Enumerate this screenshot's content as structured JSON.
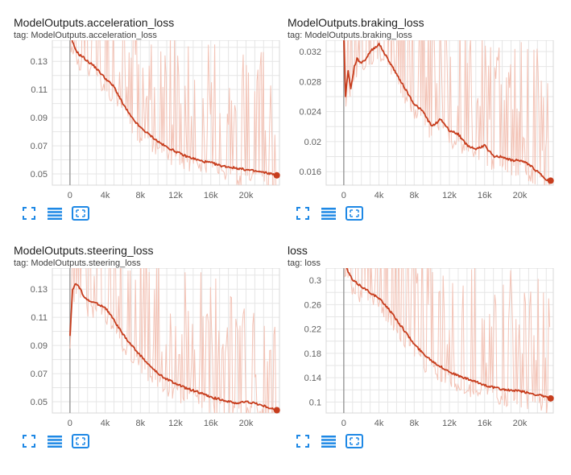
{
  "colors": {
    "smoothed": "#c73d1d",
    "raw": "#f3c3b6",
    "grid": "#e6e6e6",
    "axis": "#9e9e9e",
    "icon": "#1e88e5"
  },
  "toolbar": {
    "fullscreen_icon": "fullscreen-icon",
    "data_icon": "list-icon",
    "fit_icon": "fit-domain-icon"
  },
  "cards": [
    {
      "title": "ModelOutputs.acceleration_loss",
      "tag": "tag: ModelOutputs.acceleration_loss"
    },
    {
      "title": "ModelOutputs.braking_loss",
      "tag": "tag: ModelOutputs.braking_loss"
    },
    {
      "title": "ModelOutputs.steering_loss",
      "tag": "tag: ModelOutputs.steering_loss"
    },
    {
      "title": "loss",
      "tag": "tag: loss"
    }
  ],
  "chart_data": [
    {
      "type": "line",
      "title": "ModelOutputs.acceleration_loss",
      "xlim": [
        -2000,
        23800
      ],
      "ylim": [
        0.042,
        0.145
      ],
      "xticks": [
        0,
        4000,
        8000,
        12000,
        16000,
        20000
      ],
      "xtick_labels": [
        "0",
        "4k",
        "8k",
        "12k",
        "16k",
        "20k"
      ],
      "yticks": [
        0.05,
        0.07,
        0.09,
        0.11,
        0.13
      ],
      "ytick_labels": [
        "0.05",
        "0.07",
        "0.09",
        "0.11",
        "0.13"
      ],
      "grid": true,
      "series": [
        {
          "x": [
            0,
            500,
            1000,
            1500,
            2000,
            2500,
            3000,
            4000,
            5000,
            6000,
            7000,
            8000,
            9000,
            10000,
            11000,
            12000,
            13000,
            14000,
            15000,
            16000,
            17000,
            18000,
            19000,
            20000,
            21000,
            22000,
            23000,
            23500
          ],
          "y": [
            0.15,
            0.14,
            0.135,
            0.133,
            0.13,
            0.128,
            0.125,
            0.118,
            0.112,
            0.1,
            0.09,
            0.083,
            0.078,
            0.073,
            0.069,
            0.066,
            0.063,
            0.061,
            0.059,
            0.058,
            0.056,
            0.055,
            0.054,
            0.053,
            0.052,
            0.051,
            0.05,
            0.049
          ]
        }
      ]
    },
    {
      "type": "line",
      "title": "ModelOutputs.braking_loss",
      "xlim": [
        -2000,
        23800
      ],
      "ylim": [
        0.0142,
        0.0335
      ],
      "xticks": [
        0,
        4000,
        8000,
        12000,
        16000,
        20000
      ],
      "xtick_labels": [
        "0",
        "4k",
        "8k",
        "12k",
        "16k",
        "20k"
      ],
      "yticks": [
        0.016,
        0.02,
        0.024,
        0.028,
        0.032
      ],
      "ytick_labels": [
        "0.016",
        "0.02",
        "0.024",
        "0.028",
        "0.032"
      ],
      "grid": true,
      "series": [
        {
          "x": [
            0,
            200,
            500,
            800,
            1200,
            1500,
            2000,
            2500,
            3000,
            3500,
            4000,
            5000,
            6000,
            7000,
            8000,
            9000,
            10000,
            11000,
            12000,
            13000,
            14000,
            15000,
            16000,
            17000,
            18000,
            19000,
            20000,
            21000,
            22000,
            23000,
            23500
          ],
          "y": [
            0.034,
            0.026,
            0.0295,
            0.027,
            0.03,
            0.031,
            0.0305,
            0.031,
            0.032,
            0.0325,
            0.033,
            0.031,
            0.029,
            0.027,
            0.025,
            0.024,
            0.022,
            0.023,
            0.0215,
            0.021,
            0.0195,
            0.019,
            0.0195,
            0.018,
            0.018,
            0.0175,
            0.0175,
            0.017,
            0.016,
            0.015,
            0.0148
          ]
        }
      ]
    },
    {
      "type": "line",
      "title": "ModelOutputs.steering_loss",
      "xlim": [
        -2000,
        23800
      ],
      "ylim": [
        0.042,
        0.145
      ],
      "xticks": [
        0,
        4000,
        8000,
        12000,
        16000,
        20000
      ],
      "xtick_labels": [
        "0",
        "4k",
        "8k",
        "12k",
        "16k",
        "20k"
      ],
      "yticks": [
        0.05,
        0.07,
        0.09,
        0.11,
        0.13
      ],
      "ytick_labels": [
        "0.05",
        "0.07",
        "0.09",
        "0.11",
        "0.13"
      ],
      "grid": true,
      "series": [
        {
          "x": [
            0,
            300,
            700,
            1000,
            1500,
            2000,
            3000,
            4000,
            5000,
            6000,
            7000,
            8000,
            9000,
            10000,
            11000,
            12000,
            13000,
            14000,
            15000,
            16000,
            17000,
            18000,
            19000,
            20000,
            21000,
            22000,
            23000,
            23500
          ],
          "y": [
            0.097,
            0.13,
            0.134,
            0.132,
            0.126,
            0.122,
            0.12,
            0.117,
            0.108,
            0.098,
            0.09,
            0.083,
            0.076,
            0.07,
            0.066,
            0.063,
            0.06,
            0.058,
            0.056,
            0.053,
            0.052,
            0.05,
            0.049,
            0.05,
            0.049,
            0.047,
            0.045,
            0.044
          ]
        }
      ]
    },
    {
      "type": "line",
      "title": "loss",
      "xlim": [
        -2000,
        23800
      ],
      "ylim": [
        0.082,
        0.32
      ],
      "xticks": [
        0,
        4000,
        8000,
        12000,
        16000,
        20000
      ],
      "xtick_labels": [
        "0",
        "4k",
        "8k",
        "12k",
        "16k",
        "20k"
      ],
      "yticks": [
        0.1,
        0.14,
        0.18,
        0.22,
        0.26,
        0.3
      ],
      "ytick_labels": [
        "0.1",
        "0.14",
        "0.18",
        "0.22",
        "0.26",
        "0.3"
      ],
      "grid": true,
      "series": [
        {
          "x": [
            0,
            300,
            1000,
            1500,
            2000,
            3000,
            4000,
            5000,
            6000,
            7000,
            8000,
            9000,
            10000,
            11000,
            12000,
            13000,
            14000,
            15000,
            16000,
            17000,
            18000,
            19000,
            20000,
            21000,
            22000,
            23000,
            23500
          ],
          "y": [
            0.34,
            0.32,
            0.3,
            0.295,
            0.29,
            0.28,
            0.27,
            0.255,
            0.235,
            0.215,
            0.195,
            0.18,
            0.168,
            0.158,
            0.15,
            0.143,
            0.138,
            0.133,
            0.128,
            0.124,
            0.121,
            0.119,
            0.118,
            0.115,
            0.112,
            0.108,
            0.106
          ]
        }
      ]
    }
  ]
}
